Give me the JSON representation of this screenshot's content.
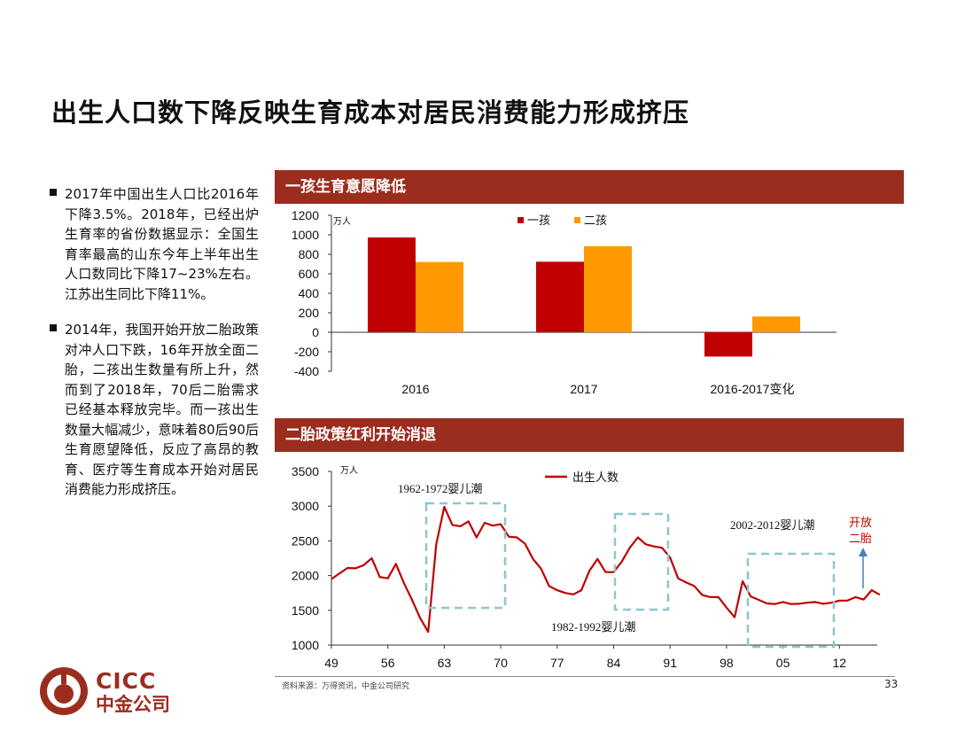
{
  "title": "出生人口数下降反映生育成本对居民消费能力形成挤压",
  "bullets": [
    "2017年中国出生人口比2016年下降3.5%。2018年，已经出炉生育率的省份数据显示：全国生育率最高的山东今年上半年出生人口数同比下降17~23%左右。江苏出生同比下降11%。",
    "2014年，我国开始开放二胎政策对冲人口下跌，16年开放全面二胎，二孩出生数量有所上升，然而到了2018年，70后二胎需求已经基本释放完毕。而一孩出生数量大幅减少，意味着80后90后生育愿望降低，反应了高昂的教育、医疗等生育成本开始对居民消费能力形成挤压。"
  ],
  "panel1_title": "一孩生育意愿降低",
  "panel2_title": "二胎政策红利开始消退",
  "source": "资料来源：万得资讯，中金公司研究",
  "page_number": "33",
  "logo": {
    "en": "CICC",
    "cn": "中金公司"
  },
  "colors": {
    "header": "#9b2d1f",
    "first_child": "#c00000",
    "second_child": "#ff9900",
    "births_line": "#c00000",
    "box": "#8fc6cc",
    "arrow": "#4a7ebb",
    "annotation_red": "#c00000"
  },
  "chart_data": [
    {
      "type": "bar",
      "categories": [
        "2016",
        "2017",
        "2016-2017变化"
      ],
      "series": [
        {
          "name": "一孩",
          "values": [
            973,
            724,
            -249
          ]
        },
        {
          "name": "二孩",
          "values": [
            721,
            883,
            162
          ]
        }
      ],
      "unit": "万人",
      "ylim": [
        -400,
        1200
      ],
      "yticks": [
        -400,
        -200,
        0,
        200,
        400,
        600,
        800,
        1000,
        1200
      ],
      "legend": "top-center",
      "grid": false
    },
    {
      "type": "line",
      "unit": "万人",
      "series": [
        {
          "name": "出生人数",
          "x": [
            1949,
            1950,
            1951,
            1952,
            1953,
            1954,
            1955,
            1956,
            1957,
            1958,
            1959,
            1960,
            1961,
            1962,
            1963,
            1964,
            1965,
            1966,
            1967,
            1968,
            1969,
            1970,
            1971,
            1972,
            1973,
            1974,
            1975,
            1976,
            1977,
            1978,
            1979,
            1980,
            1981,
            1982,
            1983,
            1984,
            1985,
            1986,
            1987,
            1988,
            1989,
            1990,
            1991,
            1992,
            1993,
            1994,
            1995,
            1996,
            1997,
            1998,
            1999,
            2000,
            2001,
            2002,
            2003,
            2004,
            2005,
            2006,
            2007,
            2008,
            2009,
            2010,
            2011,
            2012,
            2013,
            2014,
            2015,
            2016,
            2017
          ],
          "values": [
            1950,
            2030,
            2110,
            2105,
            2150,
            2250,
            1980,
            1960,
            2170,
            1890,
            1650,
            1390,
            1190,
            2450,
            2990,
            2730,
            2710,
            2780,
            2550,
            2760,
            2720,
            2740,
            2560,
            2550,
            2460,
            2240,
            2100,
            1850,
            1790,
            1750,
            1730,
            1790,
            2070,
            2240,
            2050,
            2050,
            2200,
            2400,
            2550,
            2450,
            2420,
            2400,
            2260,
            1960,
            1900,
            1850,
            1720,
            1690,
            1690,
            1540,
            1400,
            1920,
            1700,
            1650,
            1600,
            1590,
            1620,
            1590,
            1595,
            1610,
            1620,
            1595,
            1610,
            1640,
            1640,
            1690,
            1655,
            1790,
            1725
          ]
        }
      ],
      "xticks": [
        "49",
        "56",
        "63",
        "70",
        "77",
        "84",
        "91",
        "98",
        "05",
        "12"
      ],
      "ylim": [
        1000,
        3500
      ],
      "yticks": [
        1000,
        1500,
        2000,
        2500,
        3000,
        3500
      ],
      "legend": "top-center",
      "grid": false,
      "annotations": [
        {
          "text": "1962-1972婴儿潮",
          "x_range": [
            1962,
            1972
          ]
        },
        {
          "text": "1982-1992婴儿潮",
          "x_range": [
            1985,
            1991
          ]
        },
        {
          "text": "2002-2012婴儿潮",
          "x_range": [
            2002,
            2012
          ]
        },
        {
          "text": "开放二胎",
          "x": 2016
        }
      ]
    }
  ]
}
